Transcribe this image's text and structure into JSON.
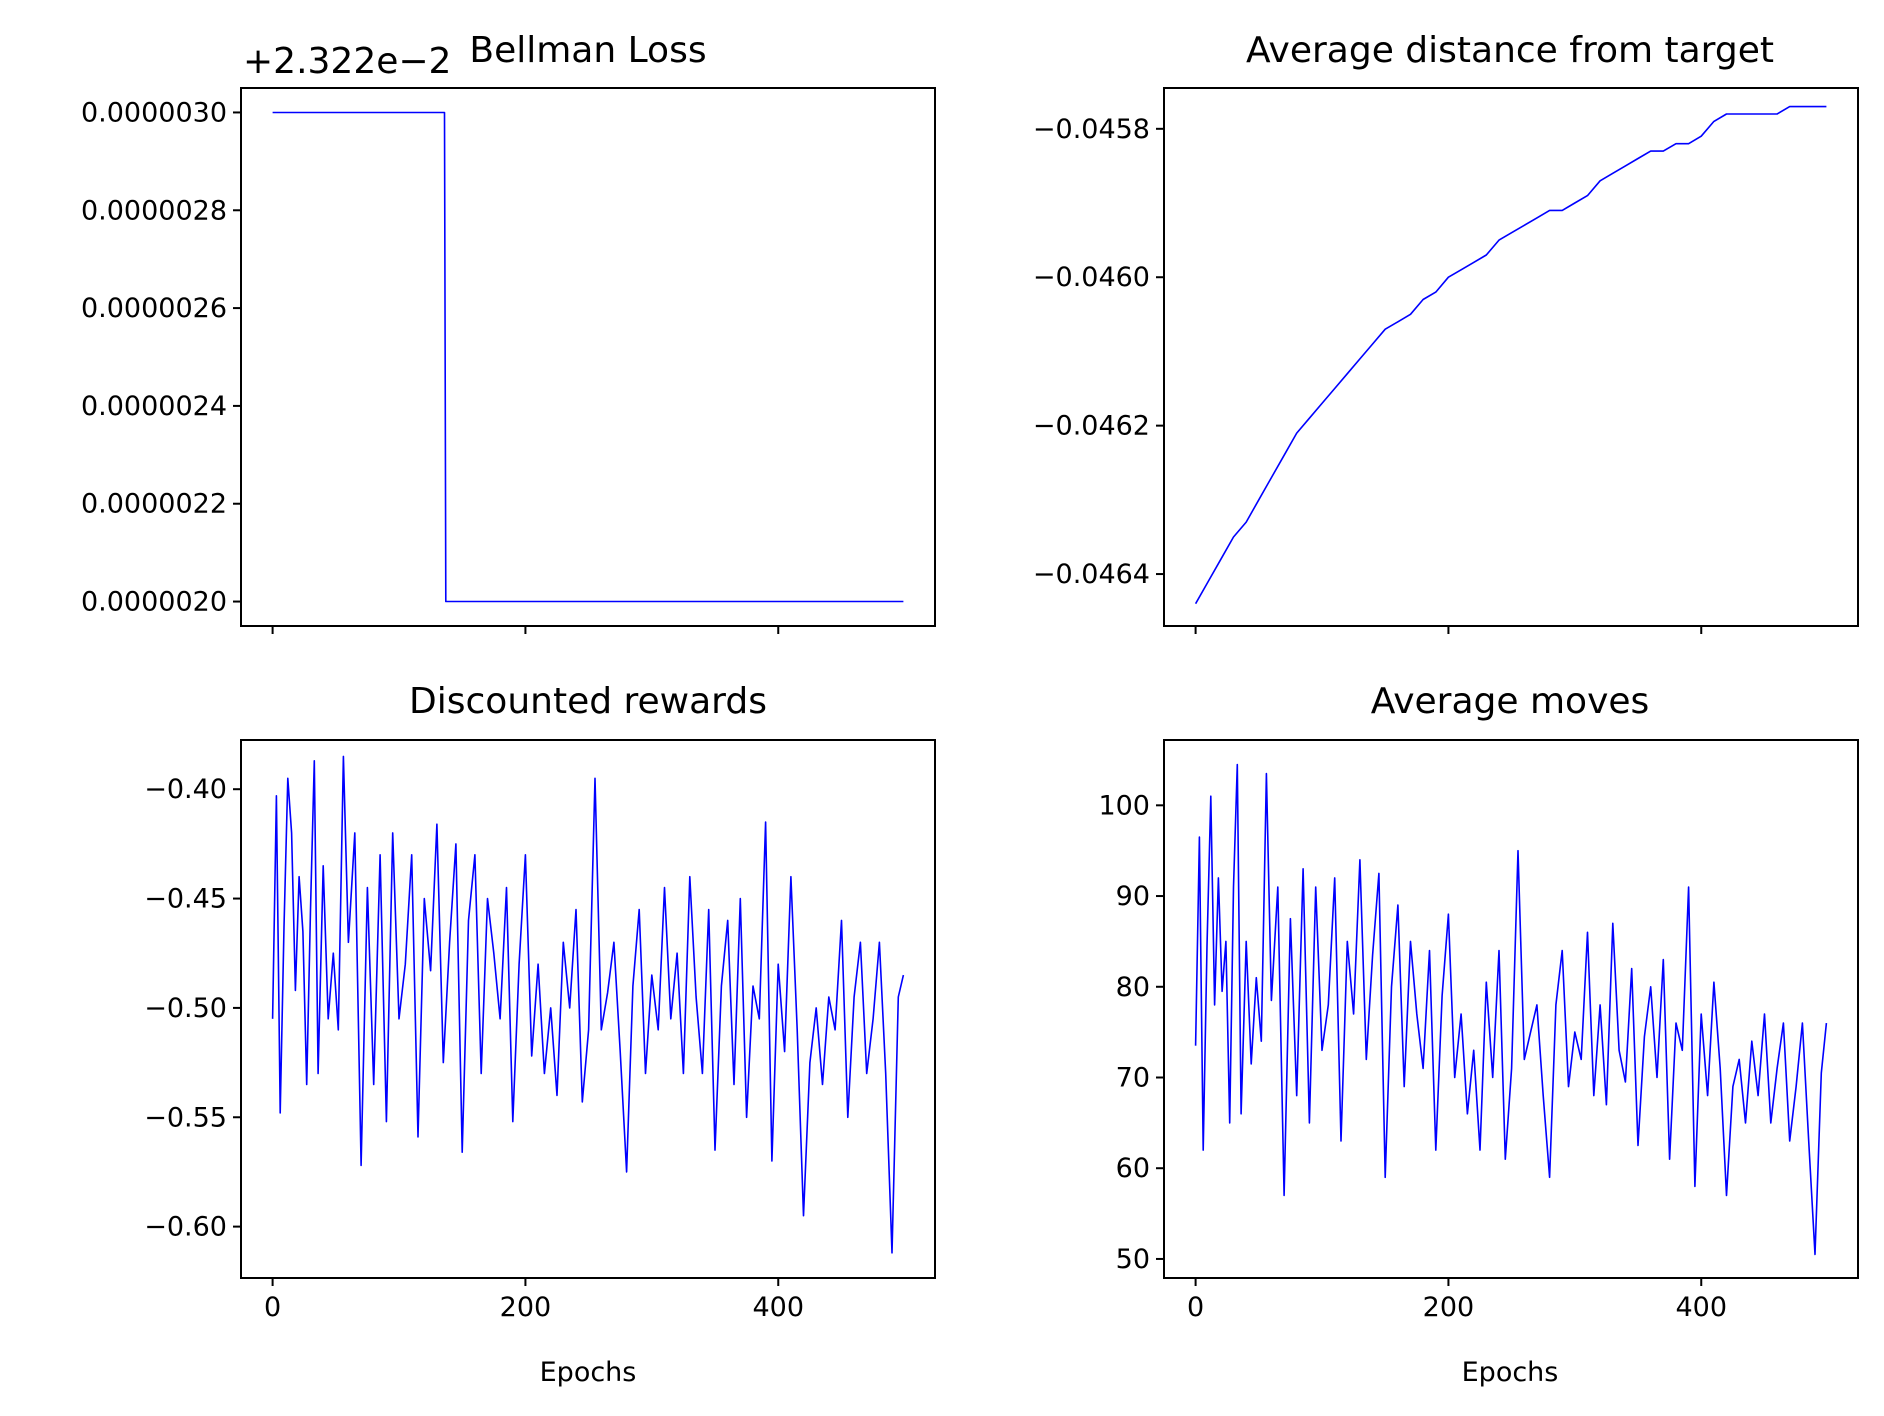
{
  "line_color": "#0000ff",
  "chart_data": [
    {
      "type": "line",
      "title": "Bellman Loss",
      "xlabel": "",
      "ylabel": "",
      "y_offset_text": "+2.322e−2",
      "xlim": [
        -25,
        524
      ],
      "ylim": [
        1.95e-06,
        3.05e-06
      ],
      "x_ticks": [
        0,
        200,
        400
      ],
      "x_tick_labels_visible": false,
      "y_ticks": [
        2e-06,
        2.2e-06,
        2.4e-06,
        2.6e-06,
        2.8e-06,
        3e-06
      ],
      "y_tick_labels": [
        "0.0000020",
        "0.0000022",
        "0.0000024",
        "0.0000026",
        "0.0000028",
        "0.0000030"
      ],
      "grid": false,
      "series": [
        {
          "x": [
            0,
            136,
            137,
            499
          ],
          "y": [
            3e-06,
            3e-06,
            2e-06,
            2e-06
          ]
        }
      ]
    },
    {
      "type": "line",
      "title": "Average distance from target",
      "xlabel": "",
      "ylabel": "",
      "xlim": [
        -25,
        524
      ],
      "ylim": [
        -0.04647,
        -0.045745
      ],
      "x_ticks": [
        0,
        200,
        400
      ],
      "x_tick_labels_visible": false,
      "y_ticks": [
        -0.0464,
        -0.0462,
        -0.046,
        -0.0458
      ],
      "y_tick_labels": [
        "−0.0464",
        "−0.0462",
        "−0.0460",
        "−0.0458"
      ],
      "grid": false,
      "series": [
        {
          "x": [
            0,
            10,
            20,
            30,
            40,
            50,
            60,
            70,
            80,
            90,
            100,
            110,
            120,
            130,
            140,
            150,
            160,
            170,
            180,
            190,
            200,
            210,
            220,
            230,
            240,
            250,
            260,
            270,
            280,
            290,
            300,
            310,
            320,
            330,
            340,
            350,
            360,
            370,
            380,
            390,
            400,
            410,
            420,
            430,
            440,
            450,
            460,
            470,
            480,
            490,
            499
          ],
          "y": [
            -0.04644,
            -0.04641,
            -0.04638,
            -0.04635,
            -0.04633,
            -0.0463,
            -0.04627,
            -0.04624,
            -0.04621,
            -0.04619,
            -0.04617,
            -0.04615,
            -0.04613,
            -0.04611,
            -0.04609,
            -0.04607,
            -0.04606,
            -0.04605,
            -0.04603,
            -0.04602,
            -0.046,
            -0.04599,
            -0.04598,
            -0.04597,
            -0.04595,
            -0.04594,
            -0.04593,
            -0.04592,
            -0.04591,
            -0.04591,
            -0.0459,
            -0.04589,
            -0.04587,
            -0.04586,
            -0.04585,
            -0.04584,
            -0.04583,
            -0.04583,
            -0.04582,
            -0.04582,
            -0.04581,
            -0.04579,
            -0.04578,
            -0.04578,
            -0.04578,
            -0.04578,
            -0.04578,
            -0.04577,
            -0.04577,
            -0.04577,
            -0.04577
          ]
        }
      ]
    },
    {
      "type": "line",
      "title": "Discounted rewards",
      "xlabel": "Epochs",
      "ylabel": "",
      "xlim": [
        -25,
        524
      ],
      "ylim": [
        -0.6235,
        -0.3775
      ],
      "x_ticks": [
        0,
        200,
        400
      ],
      "x_tick_labels": [
        "0",
        "200",
        "400"
      ],
      "y_ticks": [
        -0.6,
        -0.55,
        -0.5,
        -0.45,
        -0.4
      ],
      "y_tick_labels": [
        "−0.60",
        "−0.55",
        "−0.50",
        "−0.45",
        "−0.40"
      ],
      "grid": false,
      "series": [
        {
          "x": [
            0,
            3,
            6,
            9,
            12,
            15,
            18,
            21,
            24,
            27,
            30,
            33,
            36,
            40,
            44,
            48,
            52,
            56,
            60,
            65,
            70,
            75,
            80,
            85,
            90,
            95,
            100,
            105,
            110,
            115,
            120,
            125,
            130,
            135,
            140,
            145,
            150,
            155,
            160,
            165,
            170,
            175,
            180,
            185,
            190,
            195,
            200,
            205,
            210,
            215,
            220,
            225,
            230,
            235,
            240,
            245,
            250,
            255,
            260,
            265,
            270,
            275,
            280,
            285,
            290,
            295,
            300,
            305,
            310,
            315,
            320,
            325,
            330,
            335,
            340,
            345,
            350,
            355,
            360,
            365,
            370,
            375,
            380,
            385,
            390,
            395,
            400,
            405,
            410,
            415,
            420,
            425,
            430,
            435,
            440,
            445,
            450,
            455,
            460,
            465,
            470,
            475,
            480,
            485,
            490,
            495,
            499
          ],
          "y": [
            -0.505,
            -0.403,
            -0.548,
            -0.463,
            -0.395,
            -0.42,
            -0.492,
            -0.44,
            -0.465,
            -0.535,
            -0.455,
            -0.387,
            -0.53,
            -0.435,
            -0.505,
            -0.475,
            -0.51,
            -0.385,
            -0.47,
            -0.42,
            -0.572,
            -0.445,
            -0.535,
            -0.43,
            -0.552,
            -0.42,
            -0.505,
            -0.48,
            -0.43,
            -0.559,
            -0.45,
            -0.483,
            -0.416,
            -0.525,
            -0.47,
            -0.425,
            -0.566,
            -0.46,
            -0.43,
            -0.53,
            -0.45,
            -0.475,
            -0.505,
            -0.445,
            -0.552,
            -0.48,
            -0.43,
            -0.522,
            -0.48,
            -0.53,
            -0.5,
            -0.54,
            -0.47,
            -0.5,
            -0.455,
            -0.543,
            -0.51,
            -0.395,
            -0.51,
            -0.493,
            -0.47,
            -0.52,
            -0.575,
            -0.49,
            -0.455,
            -0.53,
            -0.485,
            -0.51,
            -0.445,
            -0.505,
            -0.475,
            -0.53,
            -0.44,
            -0.495,
            -0.53,
            -0.455,
            -0.565,
            -0.49,
            -0.46,
            -0.535,
            -0.45,
            -0.55,
            -0.49,
            -0.505,
            -0.415,
            -0.57,
            -0.48,
            -0.52,
            -0.44,
            -0.51,
            -0.595,
            -0.525,
            -0.5,
            -0.535,
            -0.495,
            -0.51,
            -0.46,
            -0.55,
            -0.495,
            -0.47,
            -0.53,
            -0.505,
            -0.47,
            -0.53,
            -0.612,
            -0.495,
            -0.485
          ]
        }
      ]
    },
    {
      "type": "line",
      "title": "Average moves",
      "xlabel": "Epochs",
      "ylabel": "",
      "xlim": [
        -25,
        524
      ],
      "ylim": [
        47.9,
        107.2
      ],
      "x_ticks": [
        0,
        200,
        400
      ],
      "x_tick_labels": [
        "0",
        "200",
        "400"
      ],
      "y_ticks": [
        50,
        60,
        70,
        80,
        90,
        100
      ],
      "y_tick_labels": [
        "50",
        "60",
        "70",
        "80",
        "90",
        "100"
      ],
      "grid": false,
      "series": [
        {
          "x": [
            0,
            3,
            6,
            9,
            12,
            15,
            18,
            21,
            24,
            27,
            30,
            33,
            36,
            40,
            44,
            48,
            52,
            56,
            60,
            65,
            70,
            75,
            80,
            85,
            90,
            95,
            100,
            105,
            110,
            115,
            120,
            125,
            130,
            135,
            140,
            145,
            150,
            155,
            160,
            165,
            170,
            175,
            180,
            185,
            190,
            195,
            200,
            205,
            210,
            215,
            220,
            225,
            230,
            235,
            240,
            245,
            250,
            255,
            260,
            265,
            270,
            275,
            280,
            285,
            290,
            295,
            300,
            305,
            310,
            315,
            320,
            325,
            330,
            335,
            340,
            345,
            350,
            355,
            360,
            365,
            370,
            375,
            380,
            385,
            390,
            395,
            400,
            405,
            410,
            415,
            420,
            425,
            430,
            435,
            440,
            445,
            450,
            455,
            460,
            465,
            470,
            475,
            480,
            485,
            490,
            495,
            499
          ],
          "y": [
            73.5,
            96.5,
            62.0,
            84.5,
            101.0,
            78.0,
            92.0,
            79.5,
            85.0,
            65.0,
            91.0,
            104.5,
            66.0,
            85.0,
            71.5,
            81.0,
            74.0,
            103.5,
            78.5,
            91.0,
            57.0,
            87.5,
            68.0,
            93.0,
            65.0,
            91.0,
            73.0,
            78.0,
            92.0,
            63.0,
            85.0,
            77.0,
            94.0,
            72.0,
            83.5,
            92.5,
            59.0,
            80.0,
            89.0,
            69.0,
            85.0,
            77.0,
            71.0,
            84.0,
            62.0,
            79.0,
            88.0,
            70.0,
            77.0,
            66.0,
            73.0,
            62.0,
            80.5,
            70.0,
            84.0,
            61.0,
            71.0,
            95.0,
            72.0,
            75.0,
            78.0,
            68.0,
            59.0,
            78.0,
            84.0,
            69.0,
            75.0,
            72.0,
            86.0,
            68.0,
            78.0,
            67.0,
            87.0,
            73.0,
            69.5,
            82.0,
            62.5,
            74.5,
            80.0,
            70.0,
            83.0,
            61.0,
            76.0,
            73.0,
            91.0,
            58.0,
            77.0,
            68.0,
            80.5,
            71.0,
            57.0,
            69.0,
            72.0,
            65.0,
            74.0,
            68.0,
            77.0,
            65.0,
            71.0,
            76.0,
            63.0,
            69.0,
            76.0,
            63.0,
            50.5,
            70.5,
            76.0
          ]
        }
      ]
    }
  ]
}
